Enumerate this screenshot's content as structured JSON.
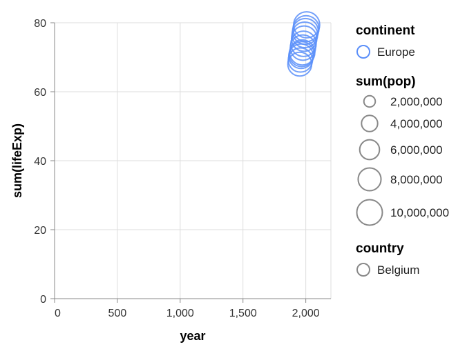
{
  "chart_data": {
    "type": "scatter",
    "xlabel": "year",
    "ylabel": "sum(lifeExp)",
    "xlim": [
      0,
      2200
    ],
    "ylim": [
      0,
      80
    ],
    "x_ticks": [
      0,
      500,
      1000,
      1500,
      2000
    ],
    "x_tick_labels": [
      "0",
      "500",
      "1,000",
      "1,500",
      "2,000"
    ],
    "y_ticks": [
      0,
      20,
      40,
      60,
      80
    ],
    "y_tick_labels": [
      "0",
      "20",
      "40",
      "60",
      "80"
    ],
    "grid": true,
    "mark_color": "#5B8FF9",
    "series": [
      {
        "name": "Belgium",
        "continent": "Europe",
        "x": [
          1952,
          1957,
          1962,
          1967,
          1972,
          1977,
          1982,
          1987,
          1992,
          1997,
          2002,
          2007
        ],
        "y": [
          68.0,
          69.2,
          70.3,
          70.9,
          71.4,
          72.8,
          73.9,
          75.4,
          76.5,
          77.5,
          78.3,
          79.4
        ],
        "pop": [
          8730405,
          8989111,
          9218400,
          9556500,
          9709100,
          9821800,
          9856303,
          9870200,
          10045622,
          10199787,
          10311970,
          10392226
        ]
      }
    ],
    "legend": {
      "position": "right",
      "continent": {
        "title": "continent",
        "items": [
          "Europe"
        ]
      },
      "size": {
        "title": "sum(pop)",
        "values": [
          2000000,
          4000000,
          6000000,
          8000000,
          10000000
        ],
        "labels": [
          "2,000,000",
          "4,000,000",
          "6,000,000",
          "8,000,000",
          "10,000,000"
        ]
      },
      "country": {
        "title": "country",
        "items": [
          "Belgium"
        ]
      }
    }
  }
}
